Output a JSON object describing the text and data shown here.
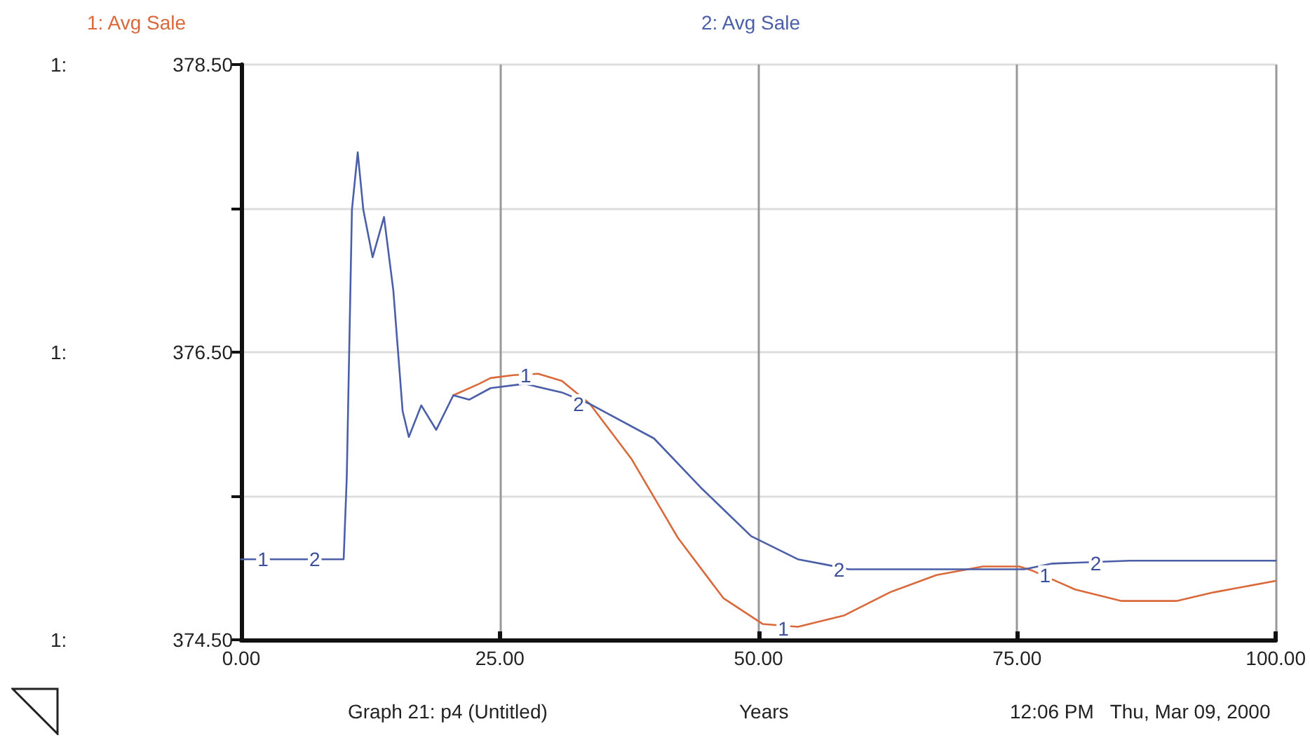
{
  "chart_data": {
    "type": "line",
    "xlabel": "Years",
    "grid": true,
    "legend": "top",
    "marker": "none",
    "line_style": "solid",
    "xlim": [
      0,
      100
    ],
    "xticks": [
      {
        "value": 0,
        "label": "0.00"
      },
      {
        "value": 25,
        "label": "25.00"
      },
      {
        "value": 50,
        "label": "50.00"
      },
      {
        "value": 75,
        "label": "75.00"
      },
      {
        "value": 100,
        "label": "100.00"
      }
    ],
    "ylim": [
      374.5,
      378.5
    ],
    "yticks": [
      {
        "value": 374.5,
        "label": "374.50"
      },
      {
        "value": 375.5,
        "label": null
      },
      {
        "value": 376.5,
        "label": "376.50"
      },
      {
        "value": 377.5,
        "label": null
      },
      {
        "value": 378.5,
        "label": "378.50"
      }
    ],
    "series": [
      {
        "name": "1: Avg Sale",
        "color": "#d9693a",
        "x": [
          20.5,
          23.0,
          24.1,
          26.3,
          28.7,
          31.0,
          33.7,
          37.7,
          42.2,
          46.6,
          50.4,
          53.8,
          58.3,
          62.7,
          67.2,
          71.7,
          75.2,
          76.5,
          80.6,
          85.1,
          90.4,
          94.0,
          100
        ],
        "values": [
          376.2,
          376.28,
          376.32,
          376.34,
          376.35,
          376.3,
          376.14,
          375.76,
          375.21,
          374.79,
          374.61,
          374.59,
          374.67,
          374.83,
          374.95,
          375.01,
          375.01,
          374.98,
          374.85,
          374.77,
          374.77,
          374.83,
          374.91
        ]
      },
      {
        "name": "2: Avg Sale",
        "color": "#4a5fa8",
        "x": [
          0,
          9.9,
          10.2,
          10.7,
          11.26,
          11.8,
          12.7,
          13.8,
          14.7,
          15.6,
          16.2,
          17.4,
          18.85,
          20.5,
          22.05,
          24.1,
          27.4,
          31.0,
          33.7,
          39.9,
          44.4,
          49.3,
          53.8,
          56.7,
          58.7,
          75.7,
          78.4,
          85.9,
          100
        ],
        "values": [
          375.06,
          375.06,
          375.63,
          377.49,
          377.89,
          377.49,
          377.16,
          377.44,
          376.93,
          376.09,
          375.91,
          376.13,
          375.96,
          376.2,
          376.17,
          376.25,
          376.28,
          376.22,
          376.14,
          375.9,
          375.56,
          375.22,
          375.06,
          375.02,
          374.99,
          374.99,
          375.03,
          375.05,
          375.05
        ]
      }
    ],
    "annotations": [
      "Graph 21: p4 (Untitled)",
      "12:06 PM   Thu, Mar 09, 2000",
      "1:",
      "1:",
      "1:",
      {
        "text": "1",
        "x": 2.1,
        "y": 375.06
      },
      {
        "text": "2",
        "x": 7.1,
        "y": 375.06
      },
      {
        "text": "1",
        "x": 27.5,
        "y": 376.34
      },
      {
        "text": "2",
        "x": 32.6,
        "y": 376.14
      },
      {
        "text": "1",
        "x": 52.4,
        "y": 374.58
      },
      {
        "text": "2",
        "x": 57.8,
        "y": 374.99
      },
      {
        "text": "1",
        "x": 77.7,
        "y": 374.95
      },
      {
        "text": "2",
        "x": 82.6,
        "y": 375.03
      }
    ]
  }
}
